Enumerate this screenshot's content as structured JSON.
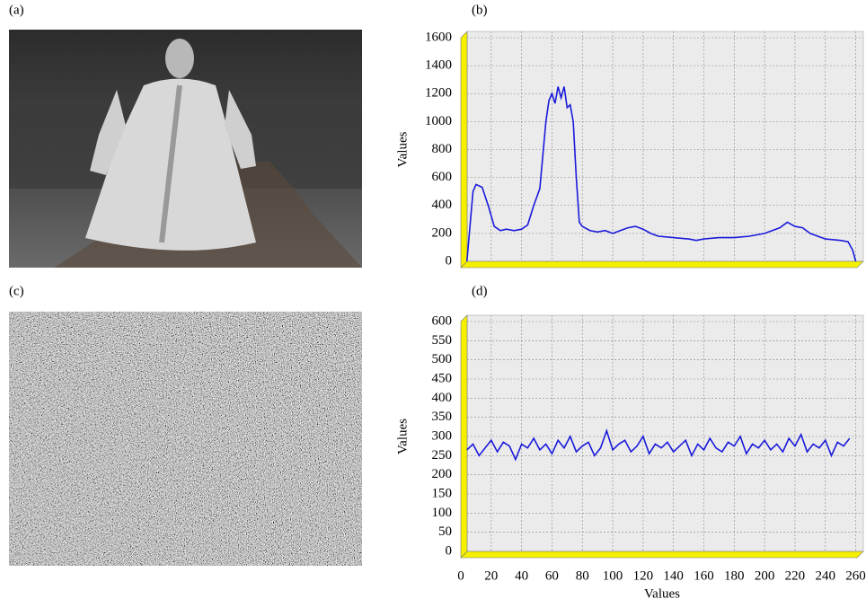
{
  "images": [
    {
      "label": "(a)"
    },
    {
      "label": "(c)"
    }
  ],
  "chart_data": [
    {
      "type": "line",
      "panel_label": "(b)",
      "ylabel": "Values",
      "color": "#1a1adb",
      "grid": true,
      "xlim": [
        0,
        265
      ],
      "xticks": [
        0,
        20,
        40,
        60,
        80,
        100,
        120,
        140,
        160,
        180,
        200,
        220,
        240,
        260
      ],
      "ylim": [
        0,
        1600
      ],
      "yticks": [
        0,
        200,
        400,
        600,
        800,
        1000,
        1200,
        1400,
        1600
      ],
      "x": [
        4,
        8,
        10,
        14,
        18,
        22,
        26,
        30,
        35,
        40,
        44,
        48,
        52,
        56,
        58,
        60,
        62,
        64,
        66,
        68,
        70,
        72,
        74,
        76,
        78,
        80,
        85,
        90,
        95,
        100,
        105,
        110,
        115,
        120,
        125,
        130,
        140,
        150,
        155,
        160,
        170,
        180,
        190,
        200,
        210,
        215,
        220,
        225,
        230,
        240,
        250,
        255,
        258,
        260
      ],
      "values": [
        0,
        500,
        550,
        530,
        400,
        250,
        220,
        230,
        220,
        230,
        260,
        400,
        520,
        1000,
        1150,
        1200,
        1130,
        1250,
        1170,
        1250,
        1100,
        1120,
        1000,
        600,
        280,
        250,
        220,
        210,
        220,
        200,
        220,
        240,
        250,
        230,
        200,
        180,
        170,
        160,
        150,
        160,
        170,
        170,
        180,
        200,
        240,
        280,
        250,
        240,
        200,
        160,
        150,
        140,
        80,
        0
      ]
    },
    {
      "type": "line",
      "panel_label": "(d)",
      "ylabel": "Values",
      "xlabel": "Values",
      "color": "#1a1adb",
      "grid": true,
      "xlim": [
        0,
        265
      ],
      "xticks": [
        0,
        20,
        40,
        60,
        80,
        100,
        120,
        140,
        160,
        180,
        200,
        220,
        240,
        260
      ],
      "ylim": [
        0,
        600
      ],
      "yticks": [
        0,
        50,
        100,
        150,
        200,
        250,
        300,
        350,
        400,
        450,
        500,
        550,
        600
      ],
      "x": [
        4,
        8,
        12,
        16,
        20,
        24,
        28,
        32,
        36,
        40,
        44,
        48,
        52,
        56,
        60,
        64,
        68,
        72,
        76,
        80,
        84,
        88,
        92,
        96,
        100,
        104,
        108,
        112,
        116,
        120,
        124,
        128,
        132,
        136,
        140,
        144,
        148,
        152,
        156,
        160,
        164,
        168,
        172,
        176,
        180,
        184,
        188,
        192,
        196,
        200,
        204,
        208,
        212,
        216,
        220,
        224,
        228,
        232,
        236,
        240,
        244,
        248,
        252,
        256
      ],
      "values": [
        265,
        280,
        250,
        270,
        290,
        260,
        285,
        275,
        240,
        280,
        270,
        295,
        265,
        280,
        255,
        290,
        270,
        300,
        260,
        275,
        285,
        250,
        270,
        315,
        265,
        280,
        290,
        260,
        275,
        300,
        255,
        280,
        270,
        285,
        260,
        275,
        290,
        250,
        280,
        265,
        295,
        270,
        260,
        285,
        275,
        300,
        255,
        280,
        270,
        290,
        265,
        280,
        260,
        295,
        275,
        305,
        260,
        280,
        270,
        290,
        250,
        285,
        275,
        295
      ]
    }
  ]
}
